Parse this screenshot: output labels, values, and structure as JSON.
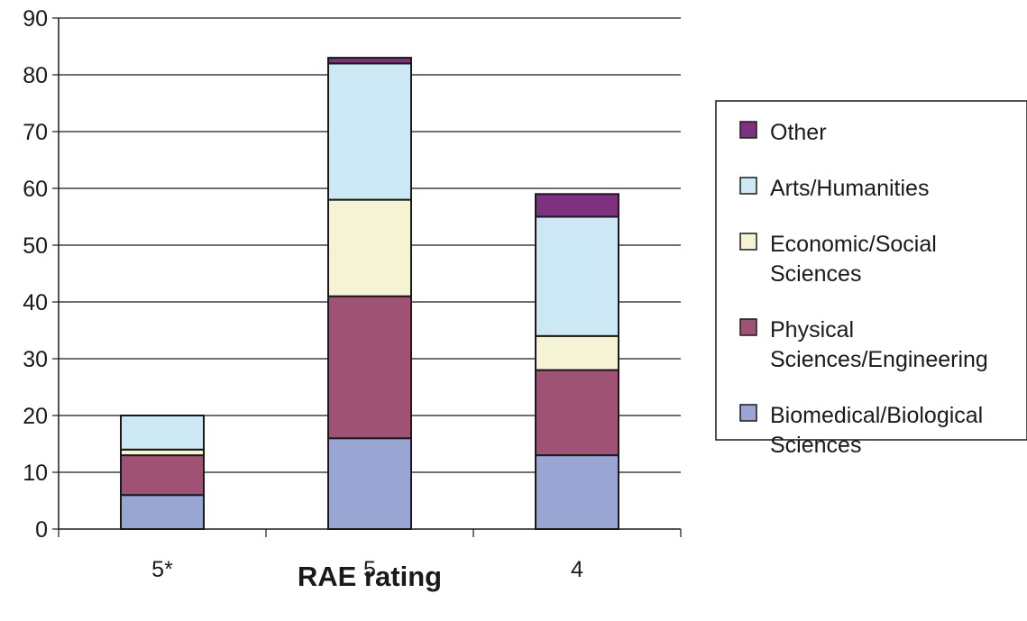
{
  "chart_data": {
    "type": "bar",
    "stacked": true,
    "categories": [
      "5*",
      "5",
      "4"
    ],
    "xlabel": "RAE rating",
    "ylabel": "",
    "title": "",
    "ylim": [
      0,
      90
    ],
    "yticks": [
      0,
      10,
      20,
      30,
      40,
      50,
      60,
      70,
      80,
      90
    ],
    "grid": true,
    "legend_position": "right",
    "series": [
      {
        "name": "Biomedical/Biological Sciences",
        "legend_lines": [
          "Biomedical/Biological",
          "Sciences"
        ],
        "color": "#99A6D4",
        "values": [
          6,
          16,
          13
        ]
      },
      {
        "name": "Physical Sciences/Engineering",
        "legend_lines": [
          "Physical",
          "Sciences/Engineering"
        ],
        "color": "#A05274",
        "values": [
          7,
          25,
          15
        ]
      },
      {
        "name": "Economic/Social Sciences",
        "legend_lines": [
          "Economic/Social",
          "Sciences"
        ],
        "color": "#F4F3D4",
        "values": [
          1,
          17,
          6
        ]
      },
      {
        "name": "Arts/Humanities",
        "legend_lines": [
          "Arts/Humanities"
        ],
        "color": "#CCE8F4",
        "values": [
          6,
          24,
          21
        ]
      },
      {
        "name": "Other",
        "legend_lines": [
          "Other"
        ],
        "color": "#7E3081",
        "values": [
          0,
          1,
          4
        ]
      }
    ]
  }
}
